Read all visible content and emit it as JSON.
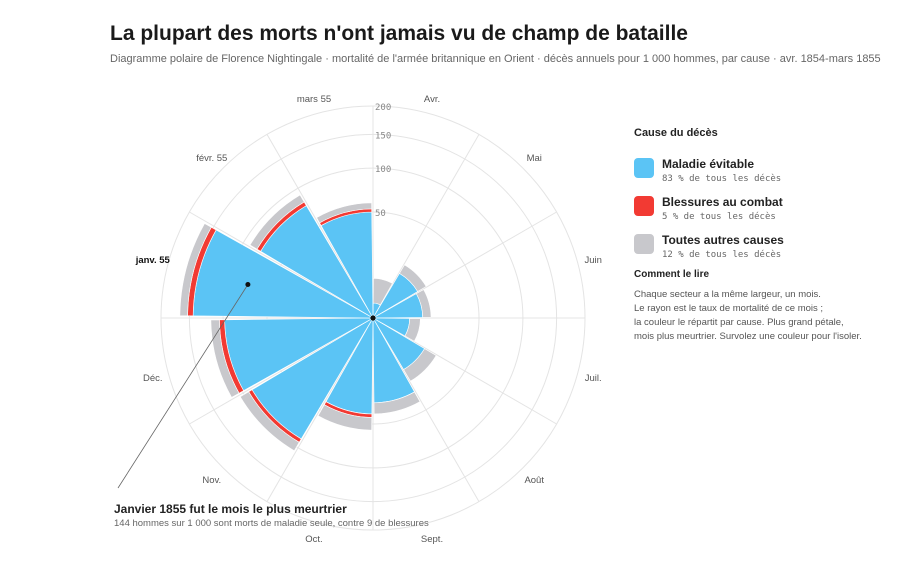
{
  "title": "La plupart des morts n'ont jamais vu de champ de bataille",
  "subtitle": "Diagramme polaire de Florence Nightingale · mortalité de l'armée britannique en Orient · décès annuels pour 1 000 hommes, par cause · avr. 1854-mars 1855",
  "colors": {
    "disease": "#5bc4f5",
    "wounds": "#f23a33",
    "other": "#c8c8cc",
    "grid": "#e4e4e4"
  },
  "legend": {
    "title": "Cause du décès",
    "items": [
      {
        "label": "Maladie évitable",
        "sub": "83 % de tous les décès",
        "color": "#5bc4f5"
      },
      {
        "label": "Blessures au combat",
        "sub": "5 % de tous les décès",
        "color": "#f23a33"
      },
      {
        "label": "Toutes autres causes",
        "sub": "12 % de tous les décès",
        "color": "#c8c8cc"
      }
    ]
  },
  "how_to_read": {
    "title": "Comment le lire",
    "lines": [
      "Chaque secteur a la même largeur, un mois.",
      "Le rayon est le taux de mortalité de ce mois ;",
      "la couleur le répartit par cause. Plus grand pétale,",
      "mois plus meurtrier. Survolez une couleur pour l'isoler."
    ]
  },
  "annotation": {
    "title": "Janvier 1855 fut le mois le plus meurtrier",
    "text": "144 hommes sur 1 000 sont morts de maladie seule, contre 9 de blessures"
  },
  "chart_data": {
    "type": "polar-area",
    "title": "La plupart des morts n'ont jamais vu de champ de bataille",
    "radial_ticks": [
      50,
      100,
      150,
      200
    ],
    "radial_max": 200,
    "highlight": "janv. 55",
    "categories": [
      "Avr.",
      "Mai",
      "Juin",
      "Juil.",
      "Août",
      "Sept.",
      "Oct.",
      "Nov.",
      "Déc.",
      "janv. 55",
      "févr. 55",
      "mars 55"
    ],
    "series": [
      {
        "name": "Maladie évitable",
        "values": [
          1,
          12,
          11,
          6,
          16,
          32,
          41,
          88,
          98,
          144,
          76,
          50
        ]
      },
      {
        "name": "Blessures au combat",
        "values": [
          0,
          0,
          0,
          0,
          0,
          0,
          3,
          5,
          7,
          9,
          5,
          3
        ]
      },
      {
        "name": "Toutes autres causes",
        "values": [
          6,
          5,
          4,
          4,
          8,
          9,
          12,
          13,
          12,
          13,
          10,
          6
        ]
      }
    ]
  }
}
